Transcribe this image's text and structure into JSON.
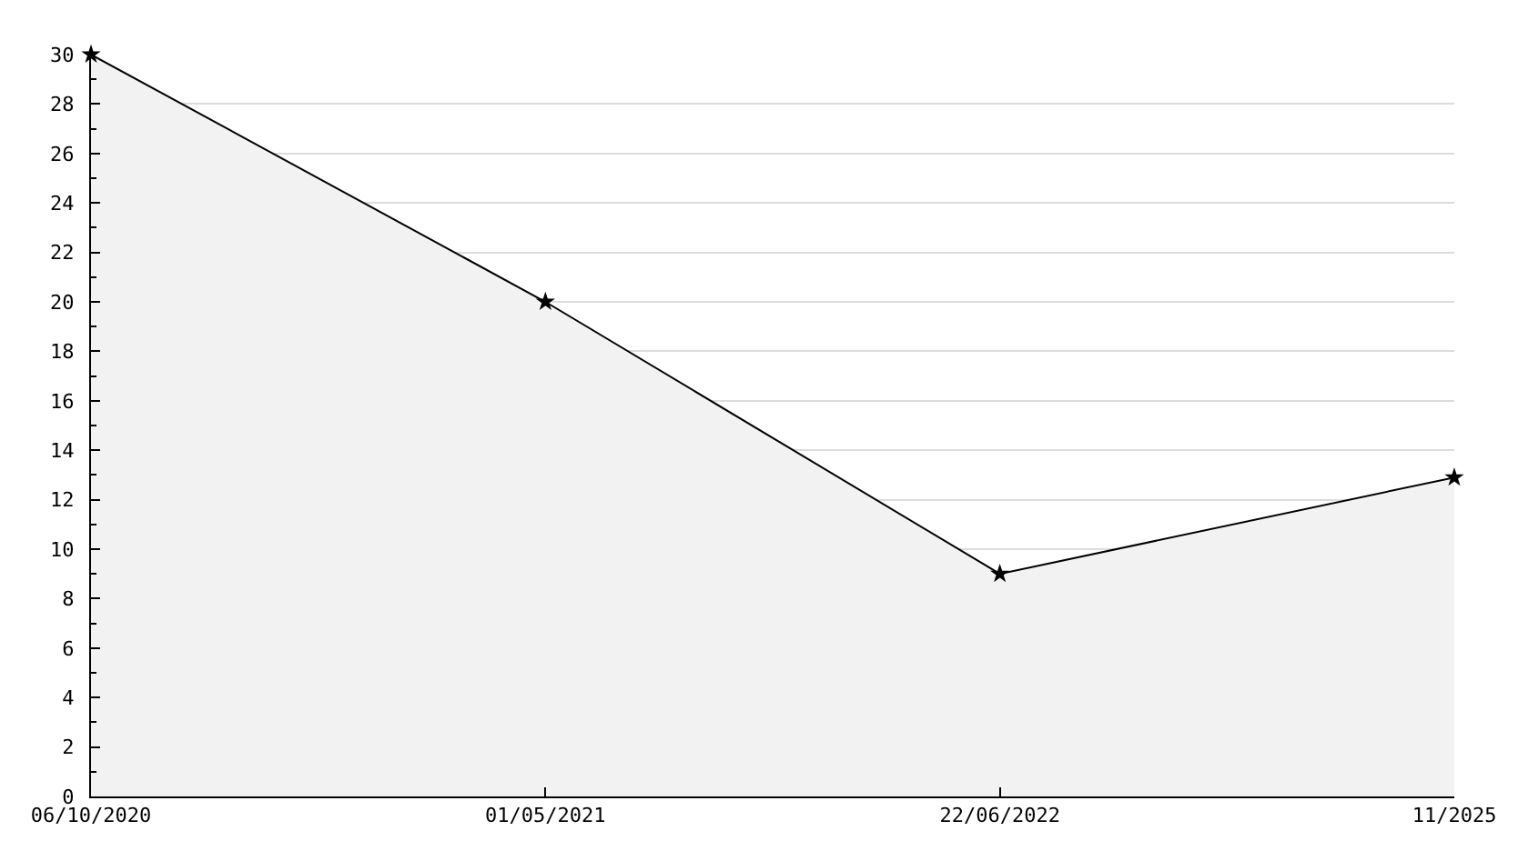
{
  "chart_data": {
    "type": "area",
    "categories": [
      "06/10/2020",
      "01/05/2021",
      "22/06/2022",
      "11/2025"
    ],
    "series": [
      {
        "color": "#f2f2f2",
        "values": [
          30,
          20,
          9,
          12.9
        ]
      }
    ],
    "ylim": [
      0,
      30
    ],
    "yticks": [
      0,
      {
        "value": 1,
        "label": null
      },
      2,
      {
        "value": 3,
        "label": null
      },
      4,
      {
        "value": 5,
        "label": null
      },
      6,
      {
        "value": 7,
        "label": null
      },
      8,
      {
        "value": 9,
        "label": null
      },
      10,
      {
        "value": 11,
        "label": null
      },
      12,
      {
        "value": 13,
        "label": null
      },
      14,
      {
        "value": 15,
        "label": null
      },
      16,
      {
        "value": 17,
        "label": null
      },
      18,
      {
        "value": 19,
        "label": null
      },
      20,
      {
        "value": 21,
        "label": null
      },
      22,
      {
        "value": 23,
        "label": null
      },
      24,
      {
        "value": 25,
        "label": null
      },
      26,
      {
        "value": 27,
        "label": null
      },
      28,
      {
        "value": 29,
        "label": null
      },
      30
    ],
    "grid": "y",
    "marker": "star",
    "line_style": "solid"
  }
}
